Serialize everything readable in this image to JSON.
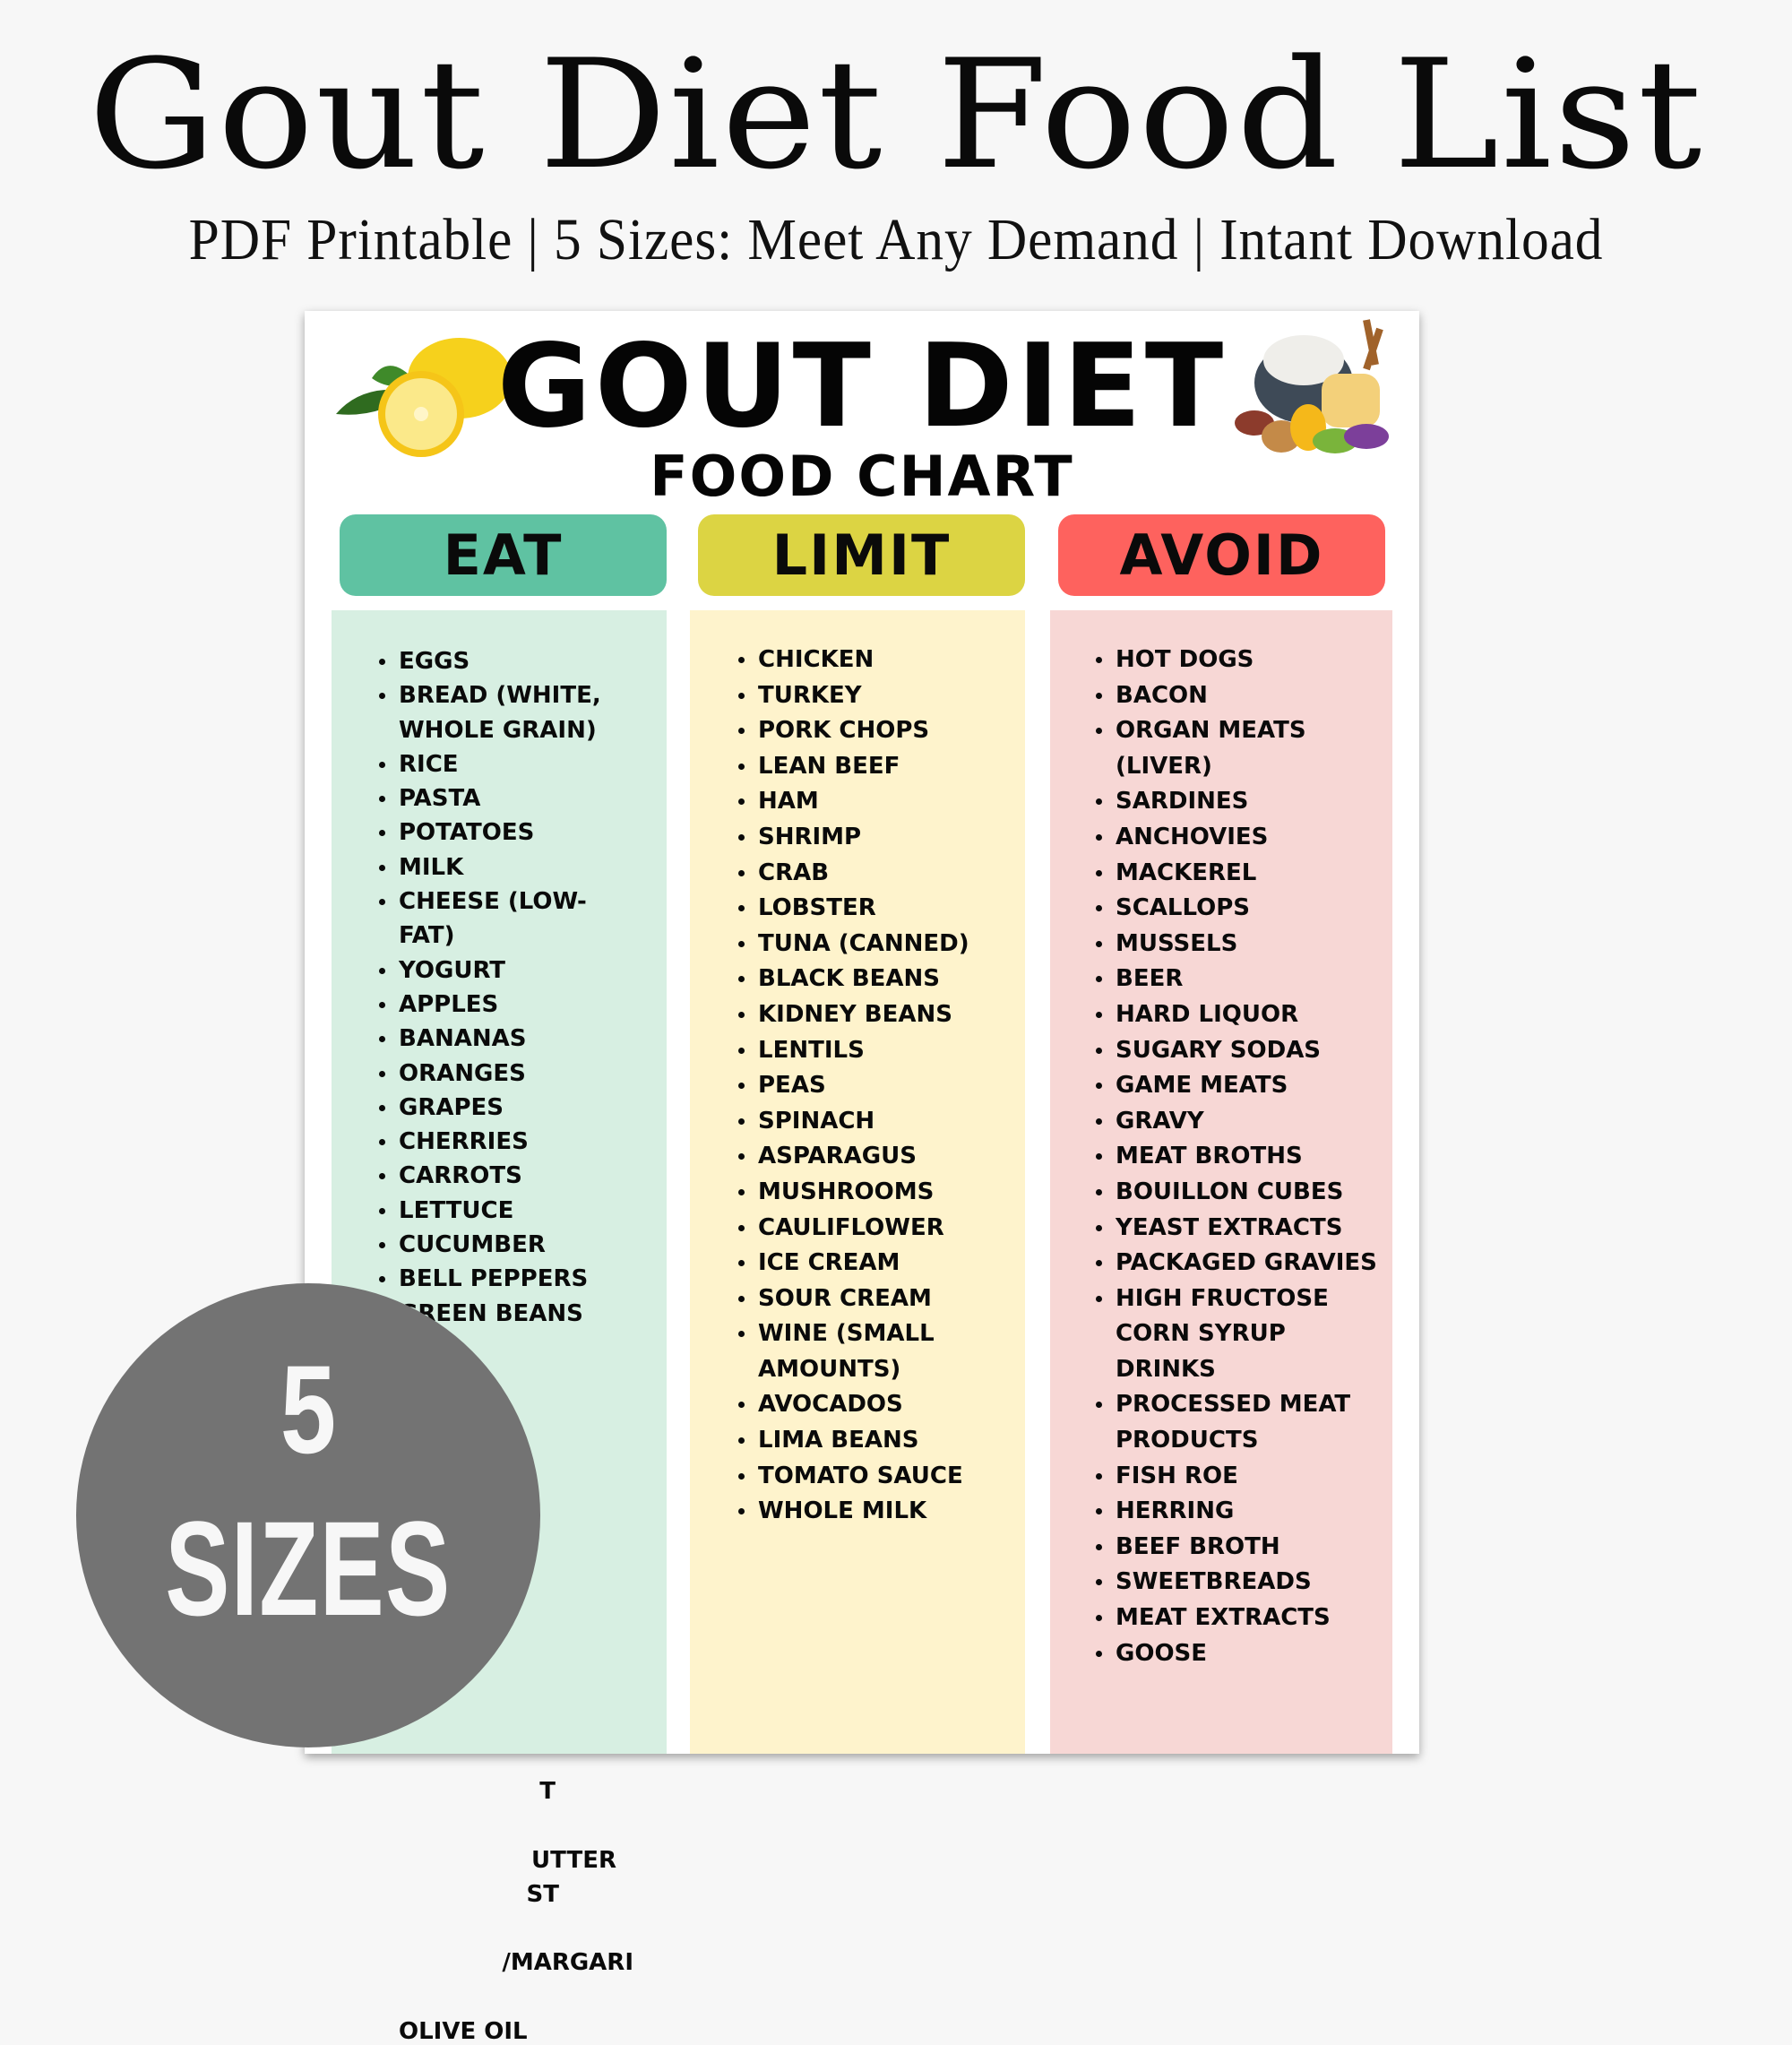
{
  "header": {
    "title": "Gout Diet Food List",
    "subtitle": "PDF Printable | 5 Sizes: Meet Any Demand | Intant Download"
  },
  "card": {
    "title": "GOUT DIET",
    "subtitle": "FOOD CHART",
    "columns": [
      {
        "label": "EAT",
        "color": "#5fc2a2",
        "bg": "#d7efe2",
        "items": [
          "EGGS",
          "BREAD (WHITE,\nWHOLE GRAIN)",
          "RICE",
          "PASTA",
          "POTATOES",
          "MILK",
          "CHEESE (LOW-\nFAT)",
          "YOGURT",
          "APPLES",
          "BANANAS",
          "ORANGES",
          "GRAPES",
          "CHERRIES",
          "CARROTS",
          "LETTUCE",
          "CUCUMBER",
          "BELL PEPPERS",
          "GREEN BEANS"
        ],
        "partially_hidden_items": [
          "T",
          "UTTER",
          "ST",
          "/MARGARI",
          "OLIVE OIL"
        ]
      },
      {
        "label": "LIMIT",
        "color": "#dcd443",
        "bg": "#fef3cc",
        "items": [
          "CHICKEN",
          "TURKEY",
          "PORK CHOPS",
          "LEAN BEEF",
          "HAM",
          "SHRIMP",
          "CRAB",
          "LOBSTER",
          "TUNA (CANNED)",
          "BLACK BEANS",
          "KIDNEY BEANS",
          "LENTILS",
          "PEAS",
          "SPINACH",
          "ASPARAGUS",
          "MUSHROOMS",
          "CAULIFLOWER",
          "ICE CREAM",
          "SOUR CREAM",
          "WINE (SMALL\nAMOUNTS)",
          "AVOCADOS",
          "LIMA BEANS",
          "TOMATO SAUCE",
          "WHOLE MILK"
        ]
      },
      {
        "label": "AVOID",
        "color": "#fe625e",
        "bg": "#f7d7d5",
        "items": [
          "HOT DOGS",
          "BACON",
          "ORGAN MEATS\n(LIVER)",
          "SARDINES",
          "ANCHOVIES",
          "MACKEREL",
          "SCALLOPS",
          "MUSSELS",
          "BEER",
          "HARD LIQUOR",
          "SUGARY SODAS",
          "GAME MEATS",
          "GRAVY",
          "MEAT BROTHS",
          "BOUILLON CUBES",
          "YEAST EXTRACTS",
          "PACKAGED GRAVIES",
          "HIGH FRUCTOSE\nCORN SYRUP DRINKS",
          "PROCESSED MEAT\nPRODUCTS",
          "FISH ROE",
          "HERRING",
          "BEEF BROTH",
          "SWEETBREADS",
          "MEAT EXTRACTS",
          "GOOSE"
        ]
      }
    ]
  },
  "badge": {
    "number": "5",
    "label": "SIZES",
    "color": "#737373"
  }
}
